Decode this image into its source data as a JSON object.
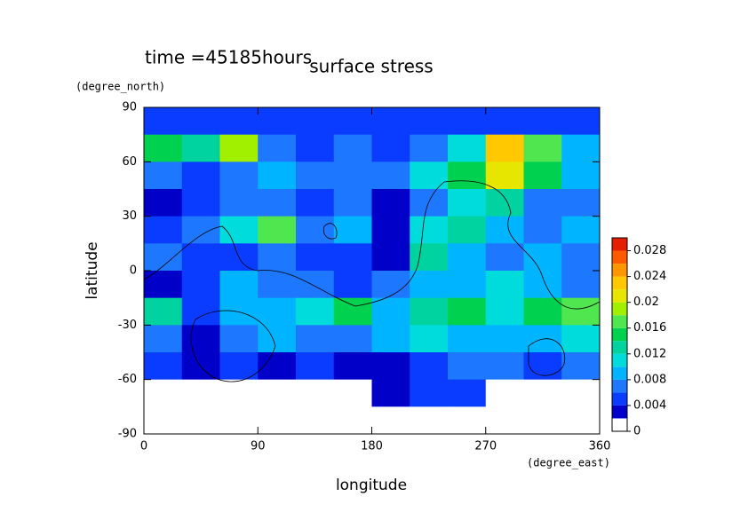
{
  "chart_data": {
    "type": "contour",
    "annotation": "time =45185hours",
    "title": "surface stress",
    "x_label": "longitude",
    "x_unit": "(degree_east)",
    "y_label": "latitude",
    "y_unit": "(degree_north)",
    "x": [
      15,
      45,
      75,
      105,
      135,
      165,
      195,
      225,
      255,
      285,
      315,
      345
    ],
    "y": [
      82.5,
      67.5,
      52.5,
      37.5,
      22.5,
      7.5,
      -7.5,
      -22.5,
      -37.5,
      -52.5,
      -67.5,
      -82.5
    ],
    "z": [
      [
        0.005,
        0.004,
        0.004,
        0.004,
        0.004,
        0.004,
        0.004,
        0.004,
        0.004,
        0.004,
        0.004,
        0.004
      ],
      [
        0.014,
        0.012,
        0.018,
        0.006,
        0.004,
        0.006,
        0.004,
        0.006,
        0.01,
        0.022,
        0.016,
        0.008
      ],
      [
        0.006,
        0.004,
        0.006,
        0.008,
        0.006,
        0.006,
        0.006,
        0.01,
        0.014,
        0.02,
        0.014,
        0.008
      ],
      [
        0.002,
        0.004,
        0.006,
        0.006,
        0.004,
        0.006,
        0.002,
        0.006,
        0.01,
        0.012,
        0.006,
        0.006
      ],
      [
        0.004,
        0.006,
        0.01,
        0.016,
        0.006,
        0.008,
        0.002,
        0.01,
        0.012,
        0.008,
        0.006,
        0.008
      ],
      [
        0.006,
        0.004,
        0.004,
        0.006,
        0.004,
        0.004,
        0.002,
        0.012,
        0.008,
        0.006,
        0.008,
        0.006
      ],
      [
        0.002,
        0.004,
        0.008,
        0.006,
        0.006,
        0.004,
        0.006,
        0.008,
        0.008,
        0.01,
        0.008,
        0.006
      ],
      [
        0.012,
        0.004,
        0.008,
        0.008,
        0.01,
        0.014,
        0.008,
        0.012,
        0.014,
        0.01,
        0.014,
        0.016
      ],
      [
        0.006,
        0.002,
        0.006,
        0.008,
        0.006,
        0.006,
        0.008,
        0.01,
        0.008,
        0.008,
        0.008,
        0.01
      ],
      [
        0.004,
        0.002,
        0.004,
        0.002,
        0.004,
        0.002,
        0.002,
        0.004,
        0.006,
        0.006,
        0.004,
        0.006
      ],
      [
        0,
        0,
        0,
        0,
        0,
        0,
        0.002,
        0.004,
        0.004,
        0,
        0,
        0
      ],
      [
        0,
        0,
        0,
        0,
        0,
        0,
        0,
        0,
        0,
        0,
        0,
        0
      ]
    ],
    "xlim": [
      0,
      360
    ],
    "xticks": [
      0,
      90,
      180,
      270,
      360
    ],
    "ylim": [
      -90,
      90
    ],
    "yticks": [
      -90,
      -60,
      -30,
      0,
      30,
      60,
      90
    ],
    "clim": [
      0,
      0.03
    ],
    "level_step": 0.002,
    "cticks": [
      0,
      0.004,
      0.008,
      0.012,
      0.016,
      0.02,
      0.024,
      0.028
    ],
    "colors": [
      "#ffffff",
      "#0000c8",
      "#0a3cff",
      "#1e78ff",
      "#00b4ff",
      "#00dcdc",
      "#00d2a0",
      "#00d250",
      "#50e650",
      "#a0f000",
      "#e6e600",
      "#ffc800",
      "#ff9600",
      "#ff5a00",
      "#e61e00"
    ]
  }
}
